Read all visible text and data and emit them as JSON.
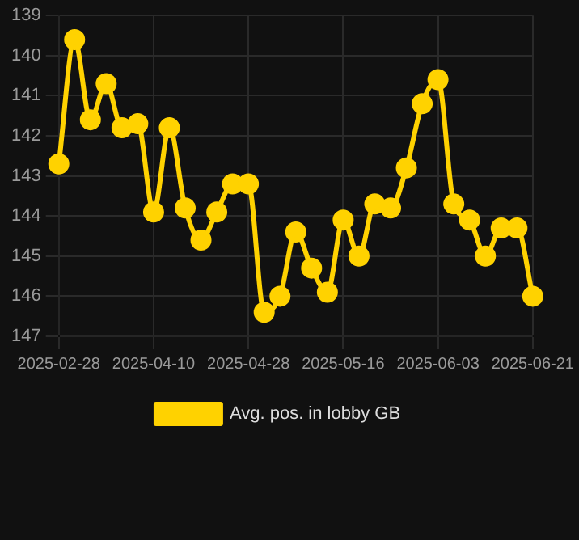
{
  "chart_data": {
    "type": "line",
    "categories": [
      "2025-02-28",
      null,
      null,
      null,
      null,
      null,
      "2025-04-10",
      null,
      null,
      null,
      null,
      null,
      "2025-04-28",
      null,
      null,
      null,
      null,
      null,
      "2025-05-16",
      null,
      null,
      null,
      null,
      null,
      "2025-06-03",
      null,
      null,
      null,
      null,
      null,
      "2025-06-21"
    ],
    "series": [
      {
        "name": "Avg. pos. in lobby GB",
        "color": "#ffd200",
        "values": [
          142.7,
          139.6,
          141.6,
          140.7,
          141.8,
          141.7,
          143.9,
          141.8,
          143.8,
          144.6,
          143.9,
          143.2,
          143.2,
          146.4,
          146.0,
          144.4,
          145.3,
          145.9,
          144.1,
          145.0,
          143.7,
          143.8,
          142.8,
          141.2,
          140.6,
          143.7,
          144.1,
          145.0,
          144.3,
          144.3,
          146.0
        ]
      }
    ],
    "ylim": [
      147,
      139
    ],
    "yticks": [
      139,
      140,
      141,
      142,
      143,
      144,
      145,
      146,
      147
    ],
    "grid": true,
    "legend": "bottom",
    "marker": "circle",
    "line_style": "solid"
  }
}
